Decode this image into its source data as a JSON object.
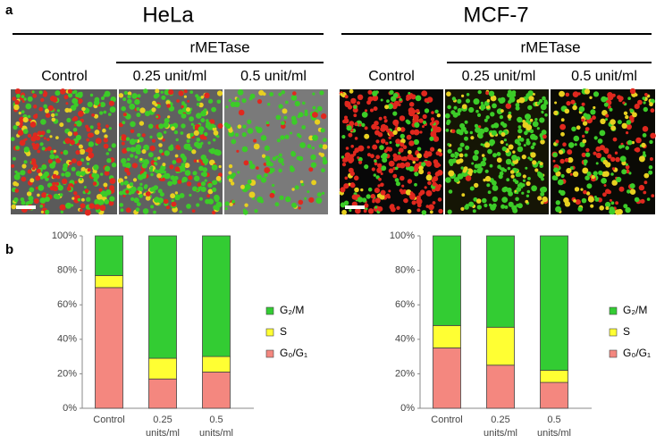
{
  "header": {
    "panel_a": "a",
    "panel_b": "b",
    "left": {
      "cell_line": "HeLa",
      "treatment": "rMETase",
      "columns": [
        "Control",
        "0.25 unit/ml",
        "0.5 unit/ml"
      ]
    },
    "right": {
      "cell_line": "MCF-7",
      "treatment": "rMETase",
      "columns": [
        "Control",
        "0.25 unit/ml",
        "0.5 unit/ml"
      ]
    }
  },
  "chart_data": [
    {
      "type": "bar",
      "stacked": true,
      "categories": [
        "Control",
        "0.25 units/ml",
        "0.5 units/ml"
      ],
      "series": [
        {
          "name": "G₀/G₁",
          "color": "#f4877f",
          "values": [
            70,
            17,
            21
          ]
        },
        {
          "name": "S",
          "color": "#ffff33",
          "values": [
            7,
            12,
            9
          ]
        },
        {
          "name": "G₂/M",
          "color": "#33cc33",
          "values": [
            23,
            71,
            70
          ]
        }
      ],
      "ylim": [
        0,
        100
      ],
      "yticks": [
        {
          "value": 0,
          "label": "0%"
        },
        {
          "value": 20,
          "label": "20%"
        },
        {
          "value": 40,
          "label": "40%"
        },
        {
          "value": 60,
          "label": "60%"
        },
        {
          "value": 80,
          "label": "80%"
        },
        {
          "value": 100,
          "label": "100%"
        }
      ],
      "legend": "right"
    },
    {
      "type": "bar",
      "stacked": true,
      "categories": [
        "Control",
        "0.25 units/ml",
        "0.5 units/ml"
      ],
      "series": [
        {
          "name": "G₀/G₁",
          "color": "#f4877f",
          "values": [
            35,
            25,
            15
          ]
        },
        {
          "name": "S",
          "color": "#ffff33",
          "values": [
            13,
            22,
            7
          ]
        },
        {
          "name": "G₂/M",
          "color": "#33cc33",
          "values": [
            52,
            53,
            78
          ]
        }
      ],
      "ylim": [
        0,
        100
      ],
      "yticks": [
        {
          "value": 0,
          "label": "0%"
        },
        {
          "value": 20,
          "label": "20%"
        },
        {
          "value": 40,
          "label": "40%"
        },
        {
          "value": 60,
          "label": "60%"
        },
        {
          "value": 80,
          "label": "80%"
        },
        {
          "value": 100,
          "label": "100%"
        }
      ],
      "legend": "right"
    }
  ]
}
